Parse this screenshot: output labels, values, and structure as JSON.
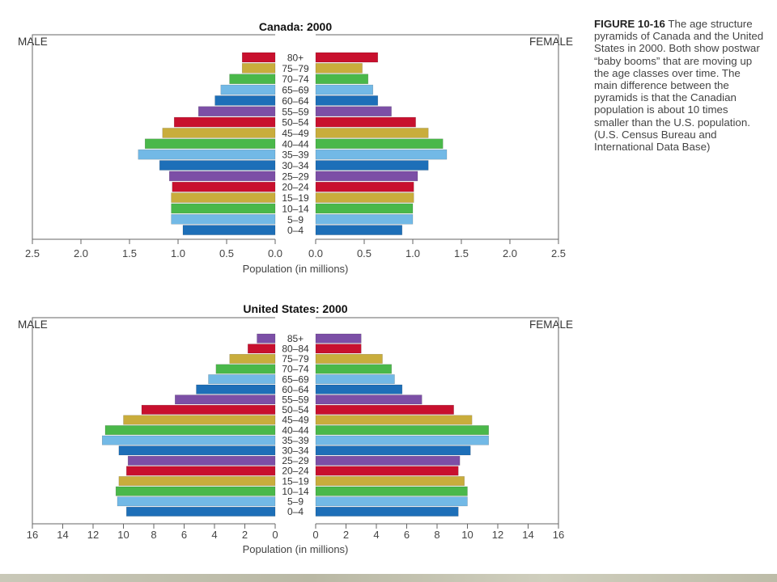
{
  "caption": {
    "label": "FIGURE 10-16",
    "text": " The age structure pyramids of Canada and the United States in 2000. Both show postwar “baby booms” that are moving up the age classes over time. The main difference between the pyramids is that the Canadian population is about 10 times smaller than the U.S. population. (U.S. Census Bureau and International Data Base)"
  },
  "colors": {
    "red": "#c8102e",
    "yellow": "#c9ad3c",
    "green": "#4ab84a",
    "lightblue": "#72b9e6",
    "blue": "#1d6fb8",
    "purple": "#7c4fa6",
    "frame": "#666666"
  },
  "chart_data": [
    {
      "type": "bar",
      "title": "Canada: 2000",
      "left_label": "MALE",
      "right_label": "FEMALE",
      "xlabel": "Population (in millions)",
      "xlim": [
        0,
        2.5
      ],
      "ticks": [
        "2.5",
        "2.0",
        "1.5",
        "1.0",
        "0.5",
        "0.0",
        "0.0",
        "0.5",
        "1.0",
        "1.5",
        "2.0",
        "2.5"
      ],
      "categories": [
        "80+",
        "75–79",
        "70–74",
        "65–69",
        "60–64",
        "55–59",
        "50–54",
        "45–49",
        "40–44",
        "35–39",
        "30–34",
        "25–29",
        "20–24",
        "15–19",
        "10–14",
        "5–9",
        "0–4"
      ],
      "bar_colors": [
        "red",
        "yellow",
        "green",
        "lightblue",
        "blue",
        "purple",
        "red",
        "yellow",
        "green",
        "lightblue",
        "blue",
        "purple",
        "red",
        "yellow",
        "green",
        "lightblue",
        "blue"
      ],
      "series": [
        {
          "values": [
            0.34,
            0.34,
            0.47,
            0.56,
            0.62,
            0.79,
            1.04,
            1.16,
            1.34,
            1.41,
            1.19,
            1.09,
            1.06,
            1.07,
            1.07,
            1.07,
            0.95
          ]
        },
        {
          "values": [
            0.64,
            0.48,
            0.54,
            0.59,
            0.64,
            0.78,
            1.03,
            1.16,
            1.31,
            1.35,
            1.16,
            1.05,
            1.01,
            1.01,
            1.0,
            1.0,
            0.89
          ]
        }
      ]
    },
    {
      "type": "bar",
      "title": "United States: 2000",
      "left_label": "MALE",
      "right_label": "FEMALE",
      "xlabel": "Population (in millions)",
      "xlim": [
        0,
        16
      ],
      "ticks": [
        "16",
        "14",
        "12",
        "10",
        "8",
        "6",
        "4",
        "2",
        "0",
        "0",
        "2",
        "4",
        "6",
        "8",
        "10",
        "12",
        "14",
        "16"
      ],
      "categories": [
        "85+",
        "80–84",
        "75–79",
        "70–74",
        "65–69",
        "60–64",
        "55–59",
        "50–54",
        "45–49",
        "40–44",
        "35–39",
        "30–34",
        "25–29",
        "20–24",
        "15–19",
        "10–14",
        "5–9",
        "0–4"
      ],
      "bar_colors": [
        "purple",
        "red",
        "yellow",
        "green",
        "lightblue",
        "blue",
        "purple",
        "red",
        "yellow",
        "green",
        "lightblue",
        "blue",
        "purple",
        "red",
        "yellow",
        "green",
        "lightblue",
        "blue"
      ],
      "series": [
        {
          "values": [
            1.2,
            1.8,
            3.0,
            3.9,
            4.4,
            5.2,
            6.6,
            8.8,
            10.0,
            11.2,
            11.4,
            10.3,
            9.7,
            9.8,
            10.3,
            10.5,
            10.4,
            9.8
          ]
        },
        {
          "values": [
            3.0,
            3.0,
            4.4,
            5.0,
            5.2,
            5.7,
            7.0,
            9.1,
            10.3,
            11.4,
            11.4,
            10.2,
            9.5,
            9.4,
            9.8,
            10.0,
            10.0,
            9.4
          ]
        }
      ]
    }
  ]
}
